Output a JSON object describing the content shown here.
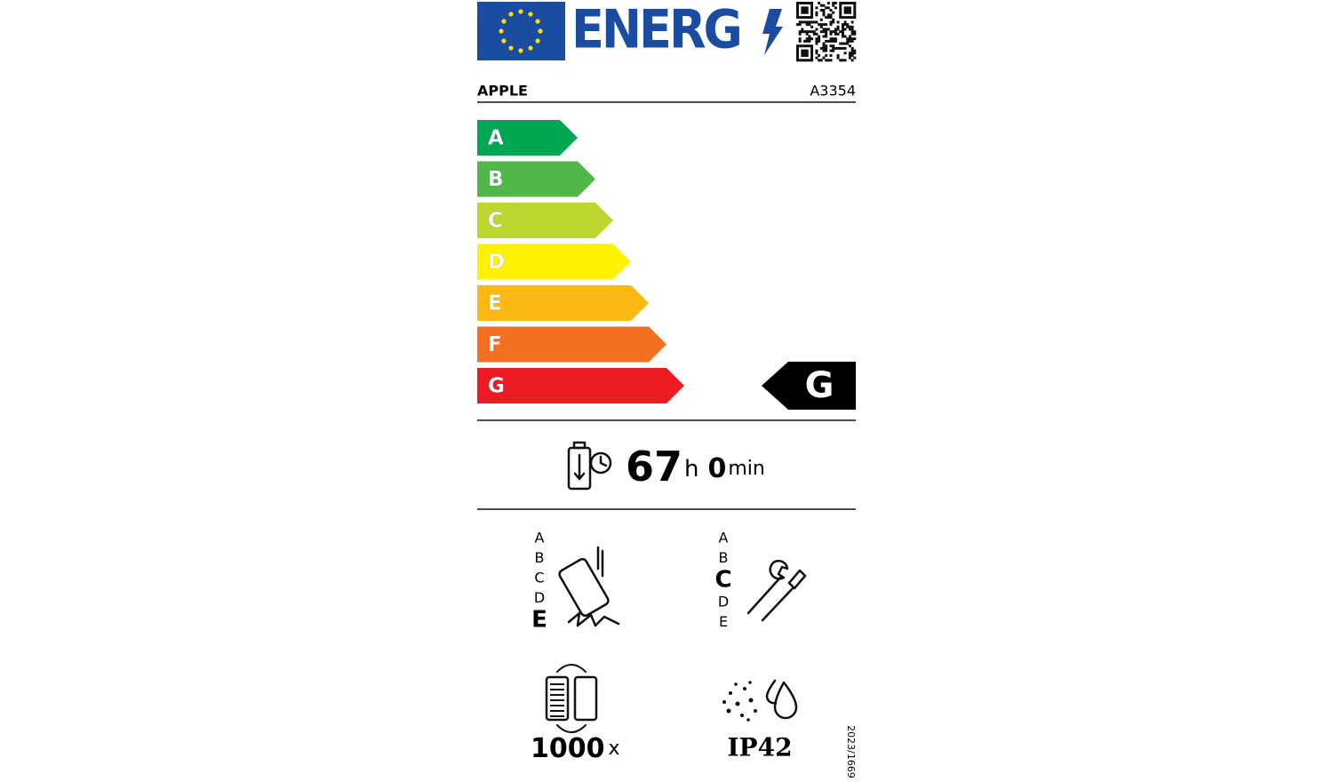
{
  "header": {
    "logo_text": "ENERG",
    "supplier": "APPLE",
    "model": "A3354"
  },
  "energy_scale": {
    "classes": [
      {
        "label": "A",
        "color": "#00a651"
      },
      {
        "label": "B",
        "color": "#50b848"
      },
      {
        "label": "C",
        "color": "#bed630"
      },
      {
        "label": "D",
        "color": "#fff200"
      },
      {
        "label": "E",
        "color": "#fdb913"
      },
      {
        "label": "F",
        "color": "#f37021"
      },
      {
        "label": "G",
        "color": "#ed1c24"
      }
    ],
    "rating": "G"
  },
  "battery_endurance": {
    "hours": 67,
    "hours_unit": "h",
    "minutes": 0,
    "minutes_unit": "min"
  },
  "drop_reliability": {
    "classes": [
      "A",
      "B",
      "C",
      "D",
      "E"
    ],
    "rating_index": 4
  },
  "repairability": {
    "classes": [
      "A",
      "B",
      "C",
      "D",
      "E"
    ],
    "rating_index": 2
  },
  "battery_cycles": {
    "value": 1000,
    "unit": "x"
  },
  "ingress_protection": {
    "rating": "IP42"
  },
  "regulation": "2023/1669"
}
